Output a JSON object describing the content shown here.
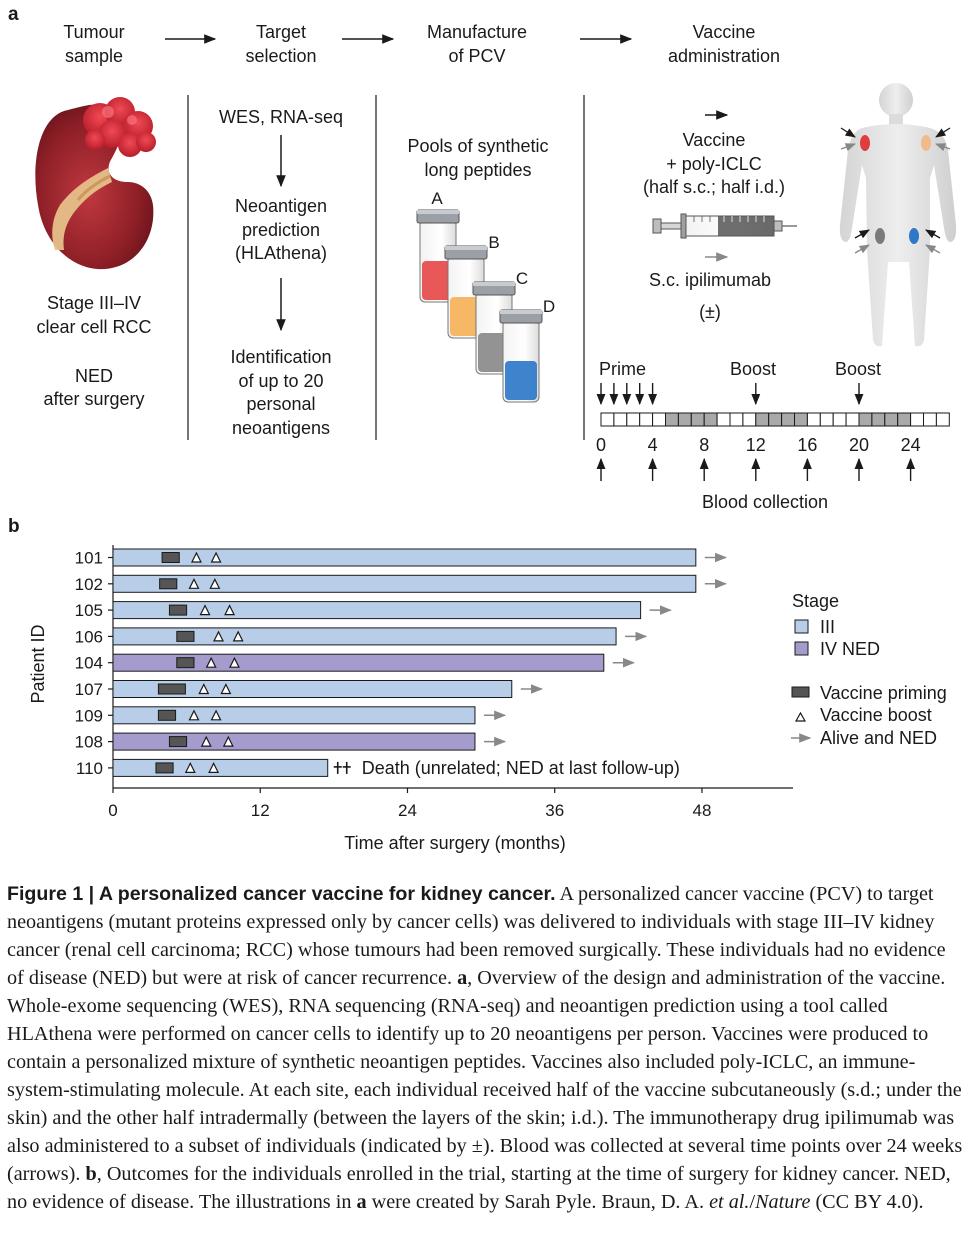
{
  "panel_a": {
    "letter": "a",
    "steps": [
      [
        "Tumour",
        "sample"
      ],
      [
        "Target",
        "selection"
      ],
      [
        "Manufacture",
        "of PCV"
      ],
      [
        "Vaccine",
        "administration"
      ]
    ],
    "tumour_text": [
      "Stage III–IV",
      "clear cell RCC",
      "",
      "NED",
      "after surgery"
    ],
    "selection": {
      "wes": "WES, RNA-seq",
      "prediction": [
        "Neoantigen",
        "prediction",
        "(HLAthena)"
      ],
      "identification": [
        "Identification",
        "of up to 20",
        "personal",
        "neoantigens"
      ]
    },
    "manufacture": {
      "pools": [
        "Pools of synthetic",
        "long peptides"
      ],
      "tubes": [
        {
          "label": "A",
          "color": "#e64a4a"
        },
        {
          "label": "B",
          "color": "#f5b15a"
        },
        {
          "label": "C",
          "color": "#8a8a8a"
        },
        {
          "label": "D",
          "color": "#2f78c8"
        }
      ]
    },
    "administration": {
      "vaccine": [
        "Vaccine",
        "+ poly-ICLC",
        "(half s.c.; half i.d.)"
      ],
      "ipilimumab": "S.c. ipilimumab",
      "pm": "(±)"
    },
    "timeline": {
      "prime": "Prime",
      "boost1": "Boost",
      "boost2": "Boost",
      "ticks": [
        "0",
        "4",
        "8",
        "12",
        "16",
        "20",
        "24"
      ],
      "blood": "Blood collection"
    }
  },
  "panel_b": {
    "letter": "b"
  },
  "chart_data": {
    "type": "bar",
    "orientation": "horizontal",
    "ylabel": "Patient ID",
    "xlabel": "Time after surgery (months)",
    "x_ticks": [
      0,
      12,
      24,
      36,
      48
    ],
    "xlim": [
      0,
      55
    ],
    "legend": {
      "stage_title": "Stage",
      "stage_items": [
        {
          "label": "III",
          "color": "#b8cde8"
        },
        {
          "label": "IV NED",
          "color": "#a59bcc"
        }
      ],
      "marker_items": [
        "Vaccine priming",
        "Vaccine boost",
        "Alive and NED"
      ],
      "placement": "right"
    },
    "patients": [
      {
        "id": "101",
        "stage": "III",
        "months": 47.5,
        "prime": [
          4.0,
          5.4
        ],
        "boosts": [
          6.8,
          8.4
        ],
        "status": "alive"
      },
      {
        "id": "102",
        "stage": "III",
        "months": 47.5,
        "prime": [
          3.8,
          5.2
        ],
        "boosts": [
          6.6,
          8.3
        ],
        "status": "alive"
      },
      {
        "id": "105",
        "stage": "III",
        "months": 43.0,
        "prime": [
          4.6,
          6.0
        ],
        "boosts": [
          7.5,
          9.5
        ],
        "status": "alive"
      },
      {
        "id": "106",
        "stage": "III",
        "months": 41.0,
        "prime": [
          5.2,
          6.6
        ],
        "boosts": [
          8.6,
          10.2
        ],
        "status": "alive"
      },
      {
        "id": "104",
        "stage": "IV NED",
        "months": 40.0,
        "prime": [
          5.2,
          6.6
        ],
        "boosts": [
          8.0,
          9.9
        ],
        "status": "alive"
      },
      {
        "id": "107",
        "stage": "III",
        "months": 32.5,
        "prime": [
          3.7,
          5.9
        ],
        "boosts": [
          7.4,
          9.2
        ],
        "status": "alive"
      },
      {
        "id": "109",
        "stage": "III",
        "months": 29.5,
        "prime": [
          3.7,
          5.1
        ],
        "boosts": [
          6.6,
          8.4
        ],
        "status": "alive"
      },
      {
        "id": "108",
        "stage": "IV NED",
        "months": 29.5,
        "prime": [
          4.6,
          6.0
        ],
        "boosts": [
          7.6,
          9.4
        ],
        "status": "alive"
      },
      {
        "id": "110",
        "stage": "III",
        "months": 17.5,
        "prime": [
          3.5,
          4.9
        ],
        "boosts": [
          6.3,
          8.2
        ],
        "status": "death",
        "note": "Death (unrelated; NED at last follow-up)"
      }
    ]
  },
  "caption": {
    "title": "Figure 1 | A personalized cancer vaccine for kidney cancer.",
    "part1": " A personalized cancer vaccine (PCV) to target neoantigens (mutant proteins expressed only by cancer cells) was delivered to individuals with stage III–IV kidney cancer (renal cell carcinoma; RCC) whose tumours had been removed surgically. These individuals had no evidence of disease (NED) but were at risk of cancer recurrence. ",
    "ref_a": "a",
    "part2": ", Overview of the design and administration of the vaccine. Whole-exome sequencing (WES), RNA sequencing (RNA-seq) and neoantigen prediction using a tool called HLAthena were performed on cancer cells to identify up to 20 neoantigens per person. Vaccines were produced to contain a personalized mixture of synthetic neoantigen peptides. Vaccines also included poly-ICLC, an immune-system-stimulating molecule. At each site, each individual received half of the vaccine subcutaneously (s.d.; under the skin) and the other half intradermally (between the layers of the skin; i.d.). The immunotherapy drug ipilimumab was also administered to a subset of individuals (indicated by ±). Blood was collected at several time points over 24 weeks (arrows). ",
    "ref_b": "b",
    "part3": ", Outcomes for the individuals enrolled in the trial, starting at the time of surgery for kidney cancer. NED, no evidence of disease. The illustrations in ",
    "ref_a2": "a",
    "part4": " were created by Sarah Pyle. Braun, D. A. ",
    "etal": "et al.",
    "part5": "/",
    "journal": "Nature",
    "part6": " (CC BY 4.0)."
  }
}
